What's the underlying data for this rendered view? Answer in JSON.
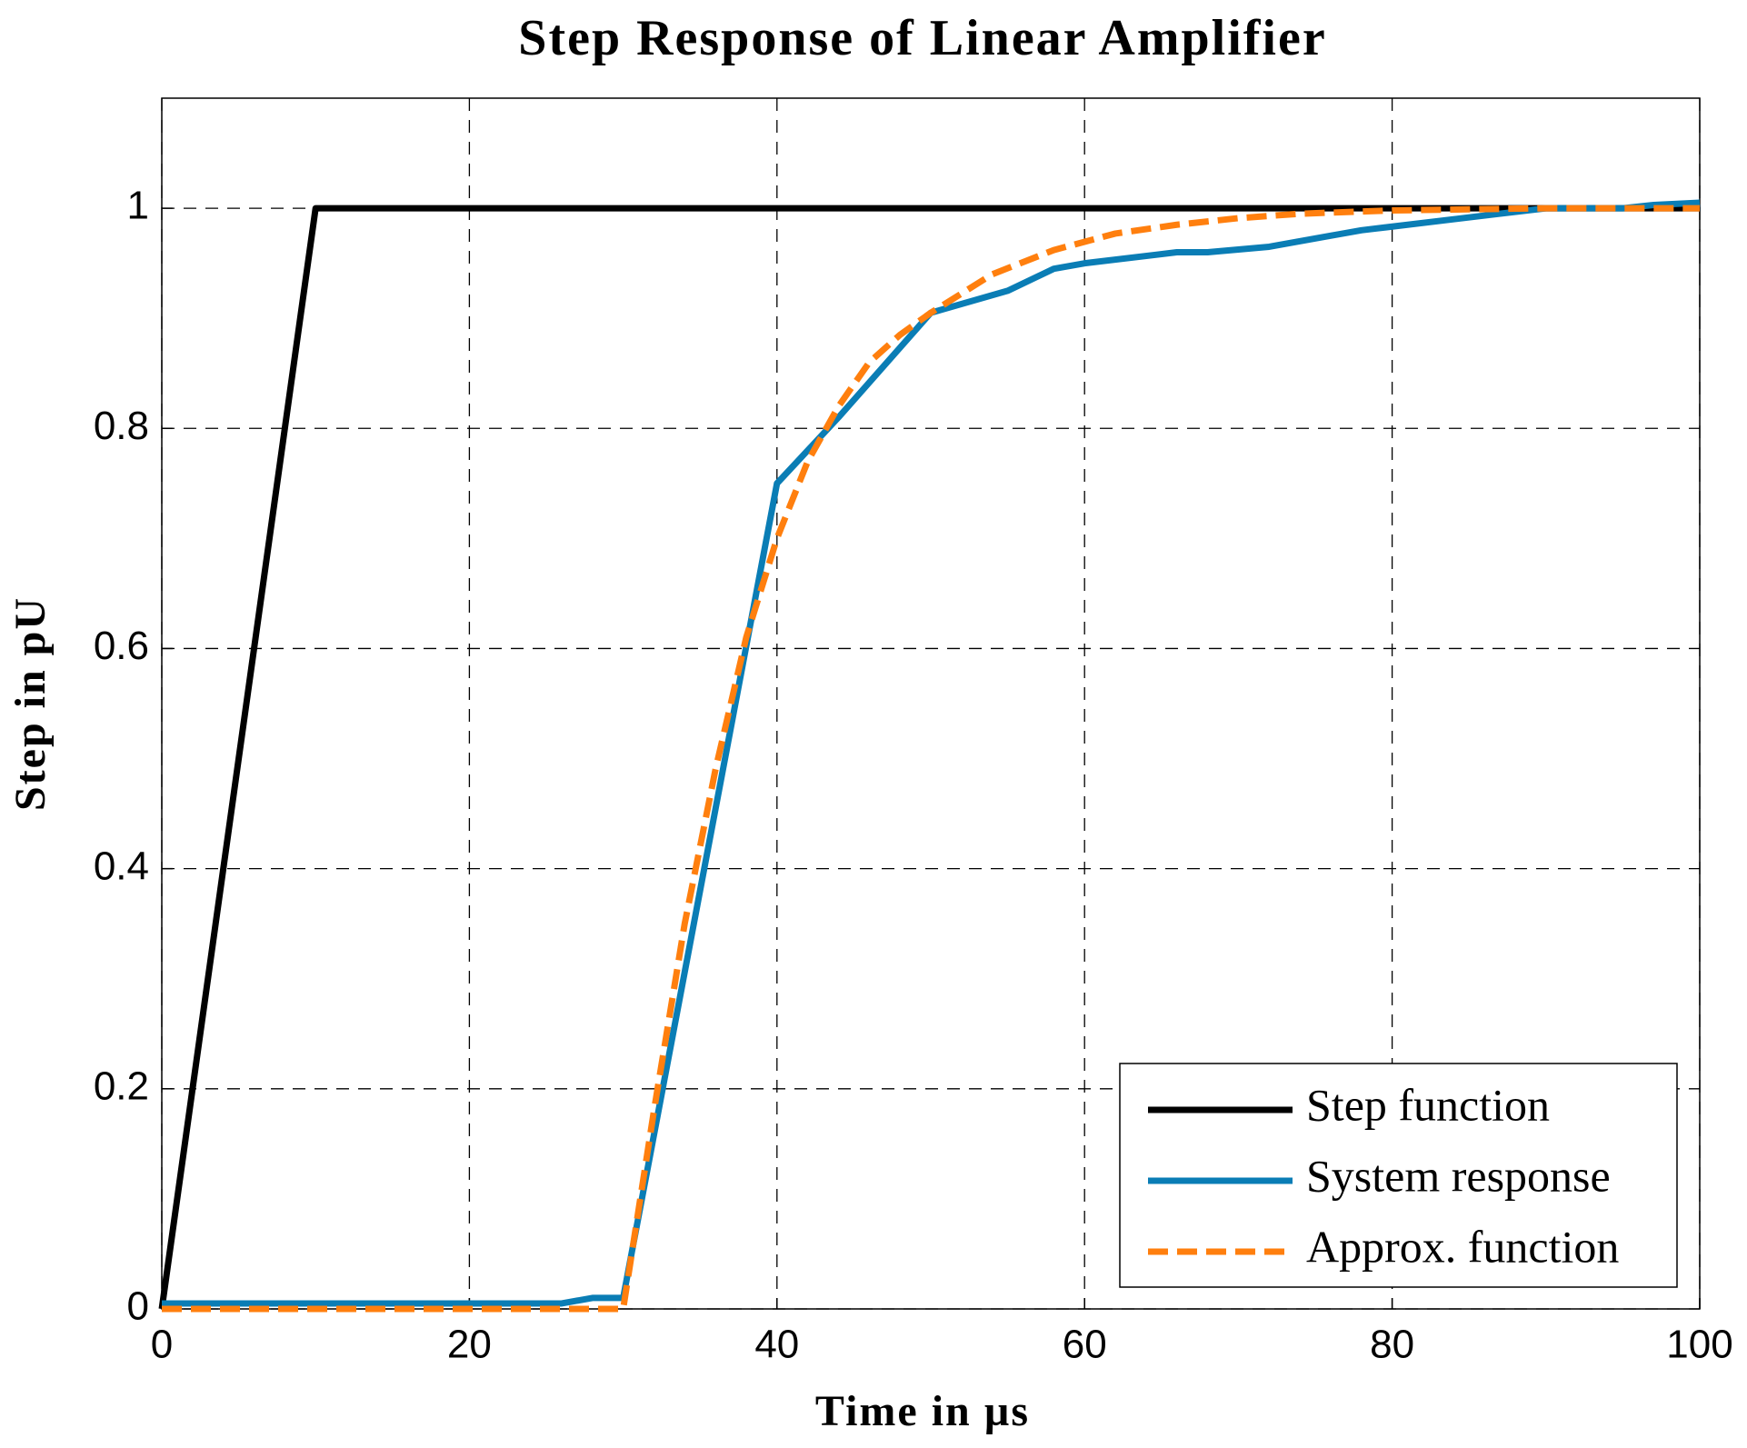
{
  "chart_data": {
    "type": "line",
    "title": "Step Response of Linear Amplifier",
    "xlabel": "Time in µs",
    "ylabel": "Step in pU",
    "xlim": [
      0,
      100
    ],
    "ylim": [
      0,
      1.1
    ],
    "xticks": [
      0,
      20,
      40,
      60,
      80,
      100
    ],
    "yticks": [
      0,
      0.2,
      0.4,
      0.6,
      0.8,
      1
    ],
    "grid": true,
    "legend": "lower right",
    "series": [
      {
        "name": "Step function",
        "color": "#000000",
        "dash": "solid",
        "x": [
          0,
          10,
          100
        ],
        "values": [
          0,
          1,
          1
        ]
      },
      {
        "name": "System response",
        "color": "#0a7db5",
        "dash": "solid",
        "x": [
          0,
          26,
          28,
          30,
          40,
          44,
          50,
          55,
          58,
          60,
          66,
          68,
          72,
          76,
          78,
          84,
          90,
          95,
          97,
          100
        ],
        "values": [
          0.005,
          0.005,
          0.01,
          0.01,
          0.75,
          0.81,
          0.905,
          0.925,
          0.945,
          0.95,
          0.96,
          0.96,
          0.965,
          0.975,
          0.98,
          0.99,
          1.0,
          1.0,
          1.003,
          1.005
        ]
      },
      {
        "name": "Approx. function",
        "color": "#ff7f0e",
        "dash": "dashed",
        "x": [
          0,
          30,
          32,
          34,
          36,
          38,
          40,
          42,
          44,
          46,
          48,
          50,
          54,
          58,
          62,
          66,
          70,
          74,
          80,
          90,
          100
        ],
        "values": [
          0,
          0,
          0.18,
          0.35,
          0.49,
          0.61,
          0.7,
          0.77,
          0.82,
          0.86,
          0.885,
          0.905,
          0.94,
          0.962,
          0.977,
          0.985,
          0.991,
          0.995,
          0.998,
          1.0,
          1.0
        ]
      }
    ]
  }
}
